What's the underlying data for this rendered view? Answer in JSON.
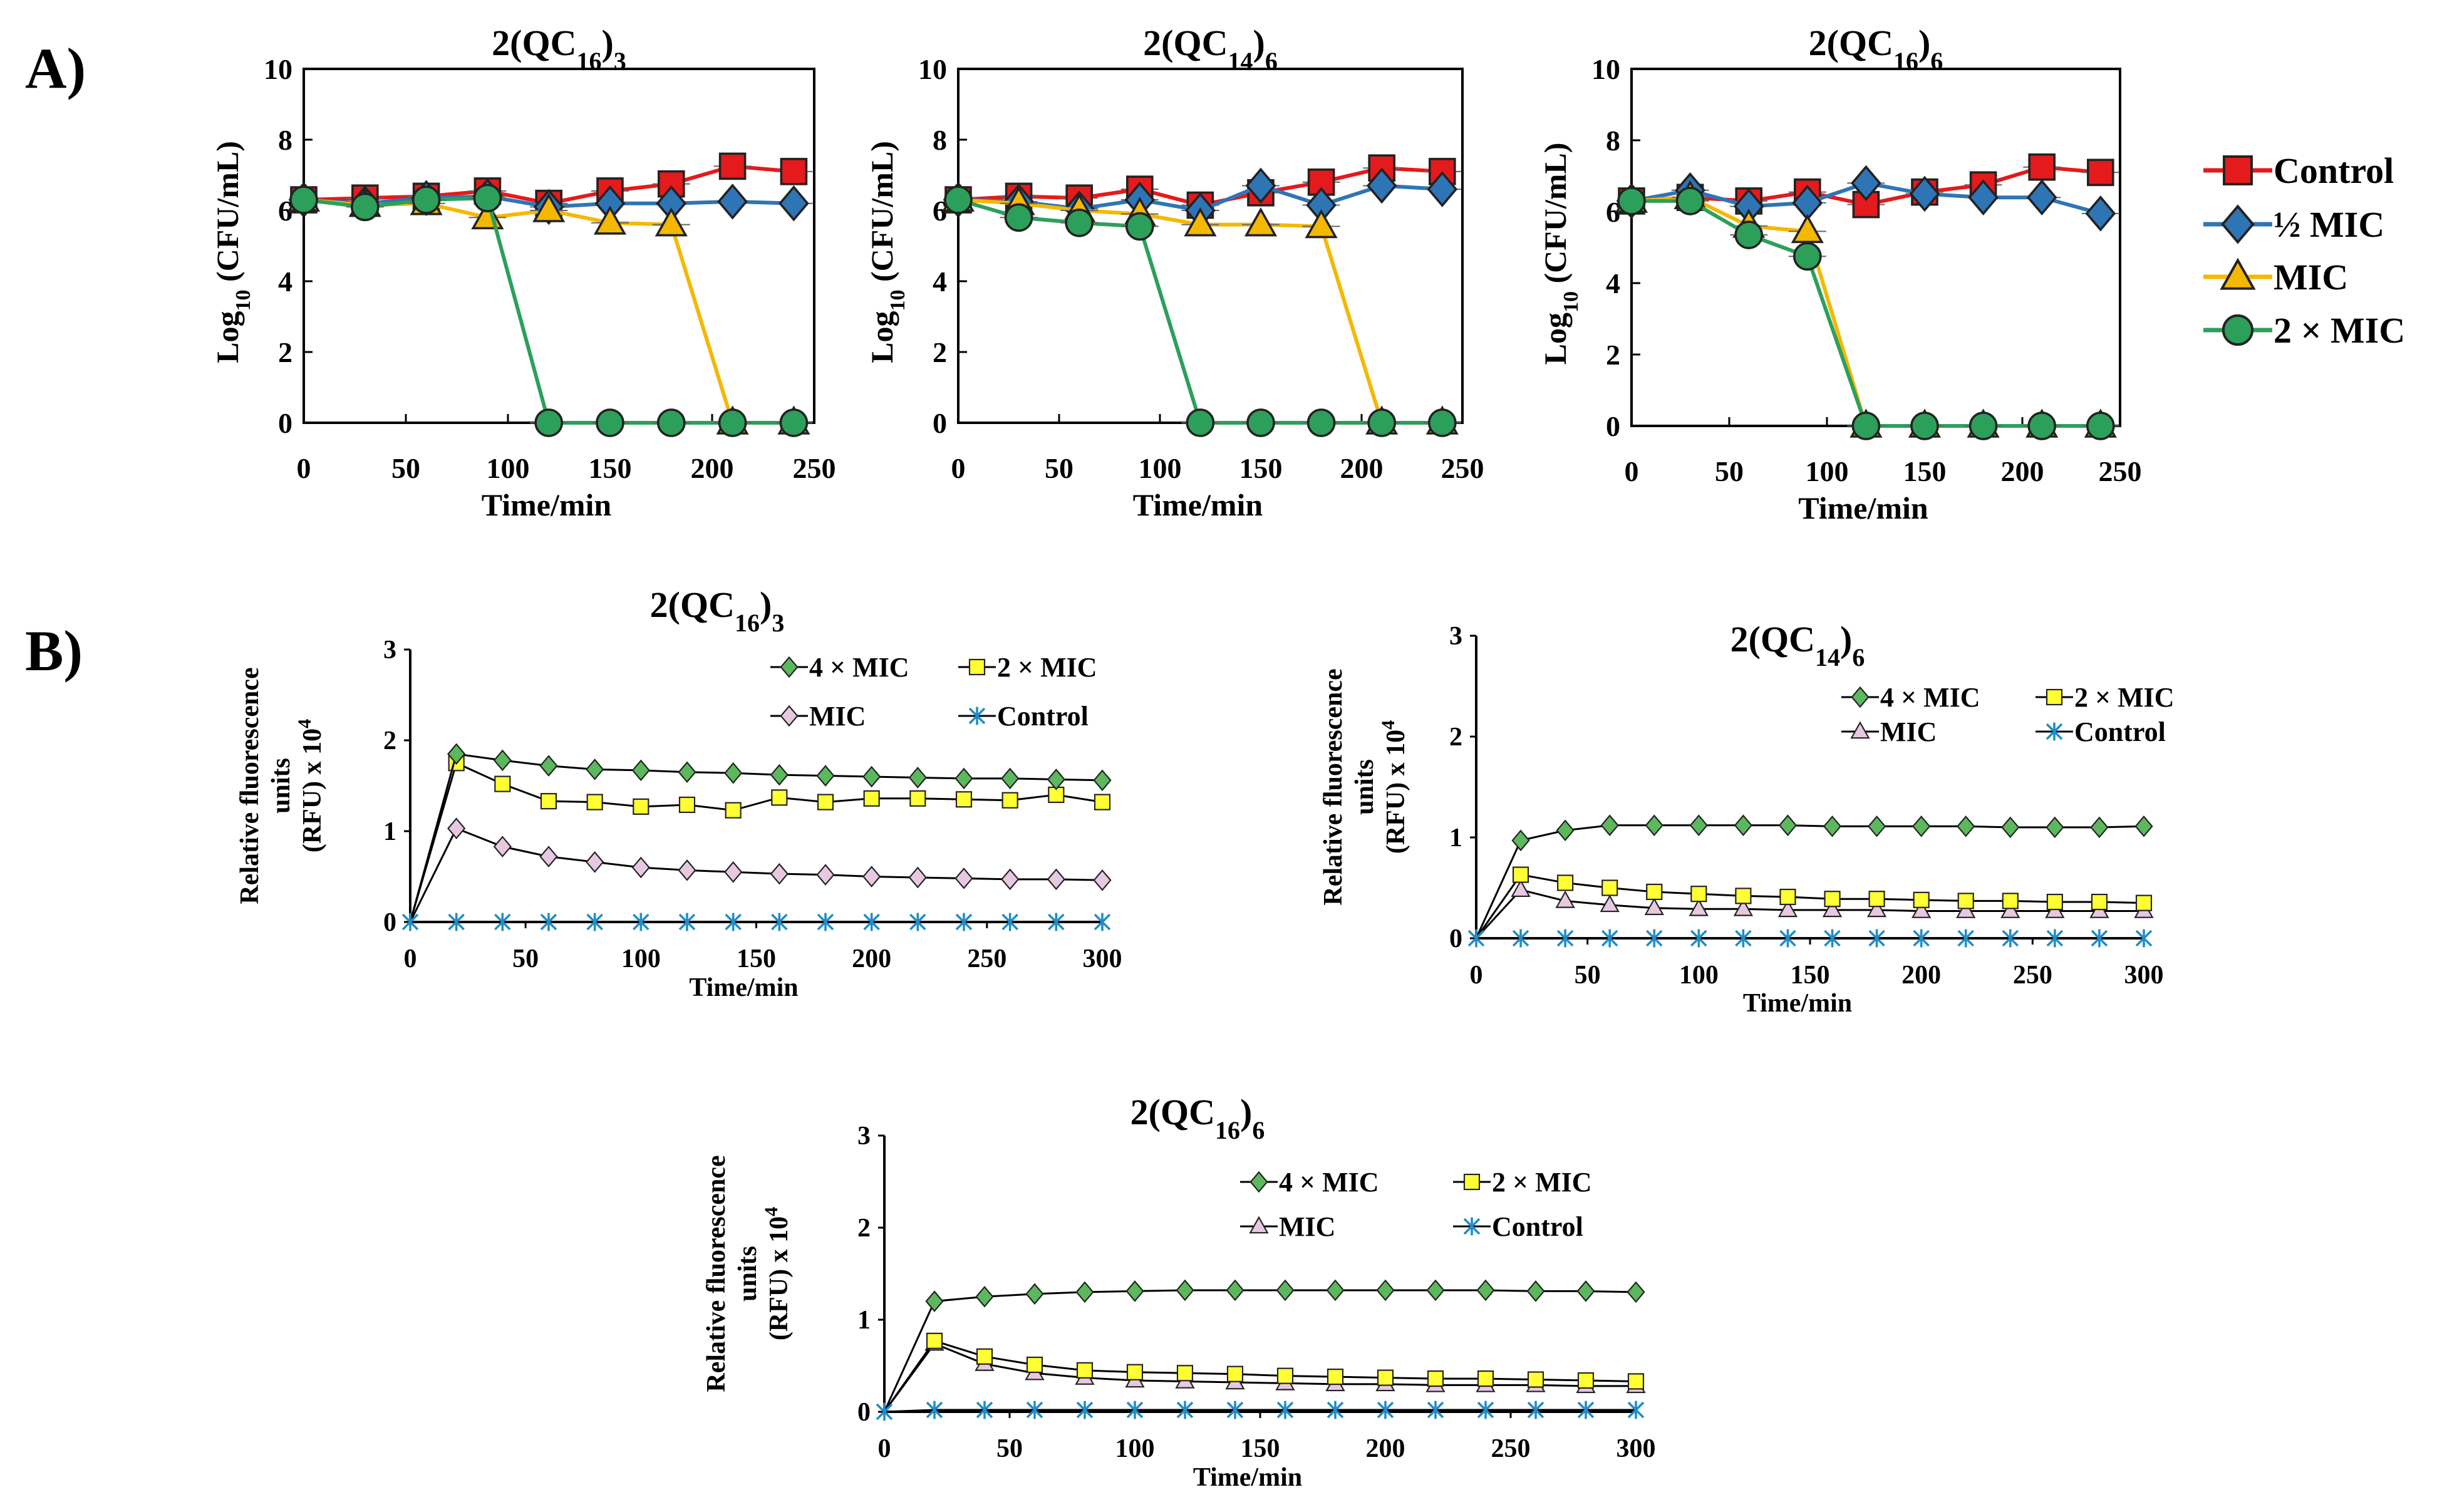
{
  "panels": {
    "a": "A)",
    "b": "B)"
  },
  "colors": {
    "control": "#e41a1c",
    "half_mic": "#2e75b6",
    "mic": "#f5b800",
    "two_mic": "#2ca05a",
    "four_mic": "#5cb85c",
    "two_mic_b": "#ffff33",
    "mic_b": "#e8c8e0",
    "control_b": "#1f8dc8"
  },
  "chart_data": [
    {
      "type": "line",
      "panel": "A",
      "title_main": "2(QC",
      "title_sub1": "16",
      "title_close": ")",
      "title_sub2": "3",
      "xlabel": "Time/min",
      "ylabel_main": "Log",
      "ylabel_sub": "10",
      "ylabel_rest": " (CFU/mL)",
      "xlim": [
        0,
        250
      ],
      "ylim": [
        0,
        10
      ],
      "xticks": [
        0,
        50,
        100,
        150,
        200,
        250
      ],
      "yticks": [
        0,
        2,
        4,
        6,
        8,
        10
      ],
      "series": [
        {
          "name": "Control",
          "key": "control",
          "marker": "square",
          "x": [
            0,
            30,
            60,
            90,
            120,
            150,
            180,
            210,
            240
          ],
          "y": [
            6.3,
            6.35,
            6.4,
            6.55,
            6.2,
            6.55,
            6.75,
            7.25,
            7.1
          ]
        },
        {
          "name": "½ MIC",
          "key": "half_mic",
          "marker": "diamond",
          "x": [
            0,
            30,
            60,
            90,
            120,
            150,
            180,
            210,
            240
          ],
          "y": [
            6.3,
            6.2,
            6.35,
            6.4,
            6.1,
            6.2,
            6.2,
            6.25,
            6.2
          ]
        },
        {
          "name": "MIC",
          "key": "mic",
          "marker": "triangle",
          "x": [
            0,
            30,
            60,
            90,
            120,
            150,
            180,
            210,
            240
          ],
          "y": [
            6.3,
            6.15,
            6.2,
            5.8,
            6.0,
            5.65,
            5.6,
            0,
            0
          ]
        },
        {
          "name": "2 × MIC",
          "key": "two_mic",
          "marker": "circle",
          "x": [
            0,
            30,
            60,
            90,
            120,
            150,
            180,
            210,
            240
          ],
          "y": [
            6.3,
            6.1,
            6.3,
            6.35,
            0,
            0,
            0,
            0,
            0
          ]
        }
      ]
    },
    {
      "type": "line",
      "panel": "A",
      "title_main": "2(QC",
      "title_sub1": "14",
      "title_close": ")",
      "title_sub2": "6",
      "xlabel": "Time/min",
      "ylabel_main": "Log",
      "ylabel_sub": "10",
      "ylabel_rest": " (CFU/mL)",
      "xlim": [
        0,
        250
      ],
      "ylim": [
        0,
        10
      ],
      "xticks": [
        0,
        50,
        100,
        150,
        200,
        250
      ],
      "yticks": [
        0,
        2,
        4,
        6,
        8,
        10
      ],
      "series": [
        {
          "name": "Control",
          "key": "control",
          "marker": "square",
          "x": [
            0,
            30,
            60,
            90,
            120,
            150,
            180,
            210,
            240
          ],
          "y": [
            6.3,
            6.4,
            6.35,
            6.6,
            6.15,
            6.5,
            6.8,
            7.2,
            7.1
          ]
        },
        {
          "name": "½ MIC",
          "key": "half_mic",
          "marker": "diamond",
          "x": [
            0,
            30,
            60,
            90,
            120,
            150,
            180,
            210,
            240
          ],
          "y": [
            6.3,
            6.25,
            6.05,
            6.3,
            6.0,
            6.7,
            6.15,
            6.7,
            6.6
          ]
        },
        {
          "name": "MIC",
          "key": "mic",
          "marker": "triangle",
          "x": [
            0,
            30,
            60,
            90,
            120,
            150,
            180,
            210,
            240
          ],
          "y": [
            6.3,
            6.2,
            6.0,
            5.9,
            5.6,
            5.6,
            5.55,
            0,
            0
          ]
        },
        {
          "name": "2 × MIC",
          "key": "two_mic",
          "marker": "circle",
          "x": [
            0,
            30,
            60,
            90,
            120,
            150,
            180,
            210,
            240
          ],
          "y": [
            6.3,
            5.8,
            5.65,
            5.55,
            0,
            0,
            0,
            0,
            0
          ]
        }
      ]
    },
    {
      "type": "line",
      "panel": "A",
      "title_main": "2(QC",
      "title_sub1": "16",
      "title_close": ")",
      "title_sub2": "6",
      "xlabel": "Time/min",
      "ylabel_main": "Log",
      "ylabel_sub": "10",
      "ylabel_rest": " (CFU/mL)",
      "xlim": [
        0,
        250
      ],
      "ylim": [
        0,
        10
      ],
      "xticks": [
        0,
        50,
        100,
        150,
        200,
        250
      ],
      "yticks": [
        0,
        2,
        4,
        6,
        8,
        10
      ],
      "series": [
        {
          "name": "Control",
          "key": "control",
          "marker": "square",
          "x": [
            0,
            30,
            60,
            90,
            120,
            150,
            180,
            210,
            240
          ],
          "y": [
            6.3,
            6.4,
            6.3,
            6.55,
            6.2,
            6.55,
            6.75,
            7.25,
            7.1
          ]
        },
        {
          "name": "½ MIC",
          "key": "half_mic",
          "marker": "diamond",
          "x": [
            0,
            30,
            60,
            90,
            120,
            150,
            180,
            210,
            240
          ],
          "y": [
            6.3,
            6.6,
            6.15,
            6.25,
            6.8,
            6.5,
            6.4,
            6.4,
            5.95
          ]
        },
        {
          "name": "MIC",
          "key": "mic",
          "marker": "triangle",
          "x": [
            0,
            30,
            60,
            90,
            120,
            150,
            180,
            210,
            240
          ],
          "y": [
            6.3,
            6.4,
            5.6,
            5.45,
            0,
            0,
            0,
            0,
            0
          ]
        },
        {
          "name": "2 × MIC",
          "key": "two_mic",
          "marker": "circle",
          "x": [
            0,
            30,
            60,
            90,
            120,
            150,
            180,
            210,
            240
          ],
          "y": [
            6.3,
            6.3,
            5.35,
            4.75,
            0,
            0,
            0,
            0,
            0
          ]
        }
      ]
    },
    {
      "type": "line",
      "panel": "B",
      "title_main": "2(QC",
      "title_sub1": "16",
      "title_close": ")",
      "title_sub2": "3",
      "xlabel": "Time/min",
      "ylabel_line1": "Relative fluorescence",
      "ylabel_line2": "units",
      "ylabel_line3": "(RFU) x 10",
      "ylabel_sup": "4",
      "xlim": [
        0,
        300
      ],
      "ylim": [
        0,
        3
      ],
      "xticks": [
        0,
        50,
        100,
        150,
        200,
        250,
        300
      ],
      "yticks": [
        0,
        1,
        2,
        3
      ],
      "series": [
        {
          "name": "4 × MIC",
          "key": "four_mic",
          "marker": "diamond",
          "x": [
            0,
            20,
            40,
            60,
            80,
            100,
            120,
            140,
            160,
            180,
            200,
            220,
            240,
            260,
            280,
            300
          ],
          "y": [
            0,
            1.85,
            1.78,
            1.72,
            1.68,
            1.67,
            1.65,
            1.64,
            1.62,
            1.61,
            1.6,
            1.59,
            1.58,
            1.58,
            1.57,
            1.56
          ]
        },
        {
          "name": "2 × MIC",
          "key": "two_mic_b",
          "marker": "square",
          "x": [
            0,
            20,
            40,
            60,
            80,
            100,
            120,
            140,
            160,
            180,
            200,
            220,
            240,
            260,
            280,
            300
          ],
          "y": [
            0,
            1.75,
            1.52,
            1.33,
            1.32,
            1.27,
            1.29,
            1.23,
            1.37,
            1.32,
            1.36,
            1.36,
            1.35,
            1.34,
            1.4,
            1.32
          ]
        },
        {
          "name": "MIC",
          "key": "mic_b",
          "marker": "diamond",
          "x": [
            0,
            20,
            40,
            60,
            80,
            100,
            120,
            140,
            160,
            180,
            200,
            220,
            240,
            260,
            280,
            300
          ],
          "y": [
            0,
            1.03,
            0.83,
            0.72,
            0.66,
            0.6,
            0.57,
            0.55,
            0.53,
            0.52,
            0.5,
            0.49,
            0.48,
            0.47,
            0.47,
            0.46
          ]
        },
        {
          "name": "Control",
          "key": "control_b",
          "marker": "asterisk",
          "x": [
            0,
            20,
            40,
            60,
            80,
            100,
            120,
            140,
            160,
            180,
            200,
            220,
            240,
            260,
            280,
            300
          ],
          "y": [
            0,
            0,
            0,
            0,
            0,
            0,
            0,
            0,
            0,
            0,
            0,
            0,
            0,
            0,
            0,
            0
          ]
        }
      ]
    },
    {
      "type": "line",
      "panel": "B",
      "title_main": "2(QC",
      "title_sub1": "14",
      "title_close": ")",
      "title_sub2": "6",
      "xlabel": "Time/min",
      "ylabel_line1": "Relative fluorescence",
      "ylabel_line2": "units",
      "ylabel_line3": "(RFU) x 10",
      "ylabel_sup": "4",
      "xlim": [
        0,
        300
      ],
      "ylim": [
        0,
        3
      ],
      "xticks": [
        0,
        50,
        100,
        150,
        200,
        250,
        300
      ],
      "yticks": [
        0,
        1,
        2,
        3
      ],
      "series": [
        {
          "name": "4 × MIC",
          "key": "four_mic",
          "marker": "diamond",
          "x": [
            0,
            20,
            40,
            60,
            80,
            100,
            120,
            140,
            160,
            180,
            200,
            220,
            240,
            260,
            280,
            300
          ],
          "y": [
            0,
            0.97,
            1.07,
            1.12,
            1.12,
            1.12,
            1.12,
            1.12,
            1.11,
            1.11,
            1.11,
            1.11,
            1.1,
            1.1,
            1.1,
            1.11
          ]
        },
        {
          "name": "2 × MIC",
          "key": "two_mic_b",
          "marker": "square",
          "x": [
            0,
            20,
            40,
            60,
            80,
            100,
            120,
            140,
            160,
            180,
            200,
            220,
            240,
            260,
            280,
            300
          ],
          "y": [
            0,
            0.63,
            0.55,
            0.5,
            0.46,
            0.44,
            0.42,
            0.41,
            0.39,
            0.39,
            0.38,
            0.37,
            0.37,
            0.36,
            0.36,
            0.35
          ]
        },
        {
          "name": "MIC",
          "key": "mic_b",
          "marker": "triangle",
          "x": [
            0,
            20,
            40,
            60,
            80,
            100,
            120,
            140,
            160,
            180,
            200,
            220,
            240,
            260,
            280,
            300
          ],
          "y": [
            0,
            0.48,
            0.37,
            0.33,
            0.3,
            0.29,
            0.29,
            0.28,
            0.28,
            0.28,
            0.27,
            0.27,
            0.27,
            0.27,
            0.27,
            0.27
          ]
        },
        {
          "name": "Control",
          "key": "control_b",
          "marker": "asterisk",
          "x": [
            0,
            20,
            40,
            60,
            80,
            100,
            120,
            140,
            160,
            180,
            200,
            220,
            240,
            260,
            280,
            300
          ],
          "y": [
            0,
            0,
            0,
            0,
            0,
            0,
            0,
            0,
            0,
            0,
            0,
            0,
            0,
            0,
            0,
            0
          ]
        }
      ]
    },
    {
      "type": "line",
      "panel": "B",
      "title_main": "2(QC",
      "title_sub1": "16",
      "title_close": ")",
      "title_sub2": "6",
      "xlabel": "Time/min",
      "ylabel_line1": "Relative fluorescence",
      "ylabel_line2": "units",
      "ylabel_line3": "(RFU) x 10",
      "ylabel_sup": "4",
      "xlim": [
        0,
        300
      ],
      "ylim": [
        0,
        3
      ],
      "xticks": [
        0,
        50,
        100,
        150,
        200,
        250,
        300
      ],
      "yticks": [
        0,
        1,
        2,
        3
      ],
      "series": [
        {
          "name": "4 × MIC",
          "key": "four_mic",
          "marker": "diamond",
          "x": [
            0,
            20,
            40,
            60,
            80,
            100,
            120,
            140,
            160,
            180,
            200,
            220,
            240,
            260,
            280,
            300
          ],
          "y": [
            0,
            1.2,
            1.25,
            1.28,
            1.3,
            1.31,
            1.32,
            1.32,
            1.32,
            1.32,
            1.32,
            1.32,
            1.32,
            1.31,
            1.31,
            1.3
          ]
        },
        {
          "name": "2 × MIC",
          "key": "two_mic_b",
          "marker": "square",
          "x": [
            0,
            20,
            40,
            60,
            80,
            100,
            120,
            140,
            160,
            180,
            200,
            220,
            240,
            260,
            280,
            300
          ],
          "y": [
            0,
            0.77,
            0.6,
            0.51,
            0.45,
            0.43,
            0.42,
            0.41,
            0.39,
            0.38,
            0.37,
            0.36,
            0.36,
            0.35,
            0.34,
            0.33
          ]
        },
        {
          "name": "MIC",
          "key": "mic_b",
          "marker": "triangle",
          "x": [
            0,
            20,
            40,
            60,
            80,
            100,
            120,
            140,
            160,
            180,
            200,
            220,
            240,
            260,
            280,
            300
          ],
          "y": [
            0,
            0.74,
            0.52,
            0.42,
            0.37,
            0.34,
            0.33,
            0.32,
            0.31,
            0.3,
            0.3,
            0.29,
            0.29,
            0.29,
            0.28,
            0.28
          ]
        },
        {
          "name": "Control",
          "key": "control_b",
          "marker": "asterisk",
          "x": [
            0,
            20,
            40,
            60,
            80,
            100,
            120,
            140,
            160,
            180,
            200,
            220,
            240,
            260,
            280,
            300
          ],
          "y": [
            0,
            0.02,
            0.02,
            0.02,
            0.02,
            0.02,
            0.02,
            0.02,
            0.02,
            0.02,
            0.02,
            0.02,
            0.02,
            0.02,
            0.02,
            0.02
          ]
        }
      ]
    }
  ]
}
